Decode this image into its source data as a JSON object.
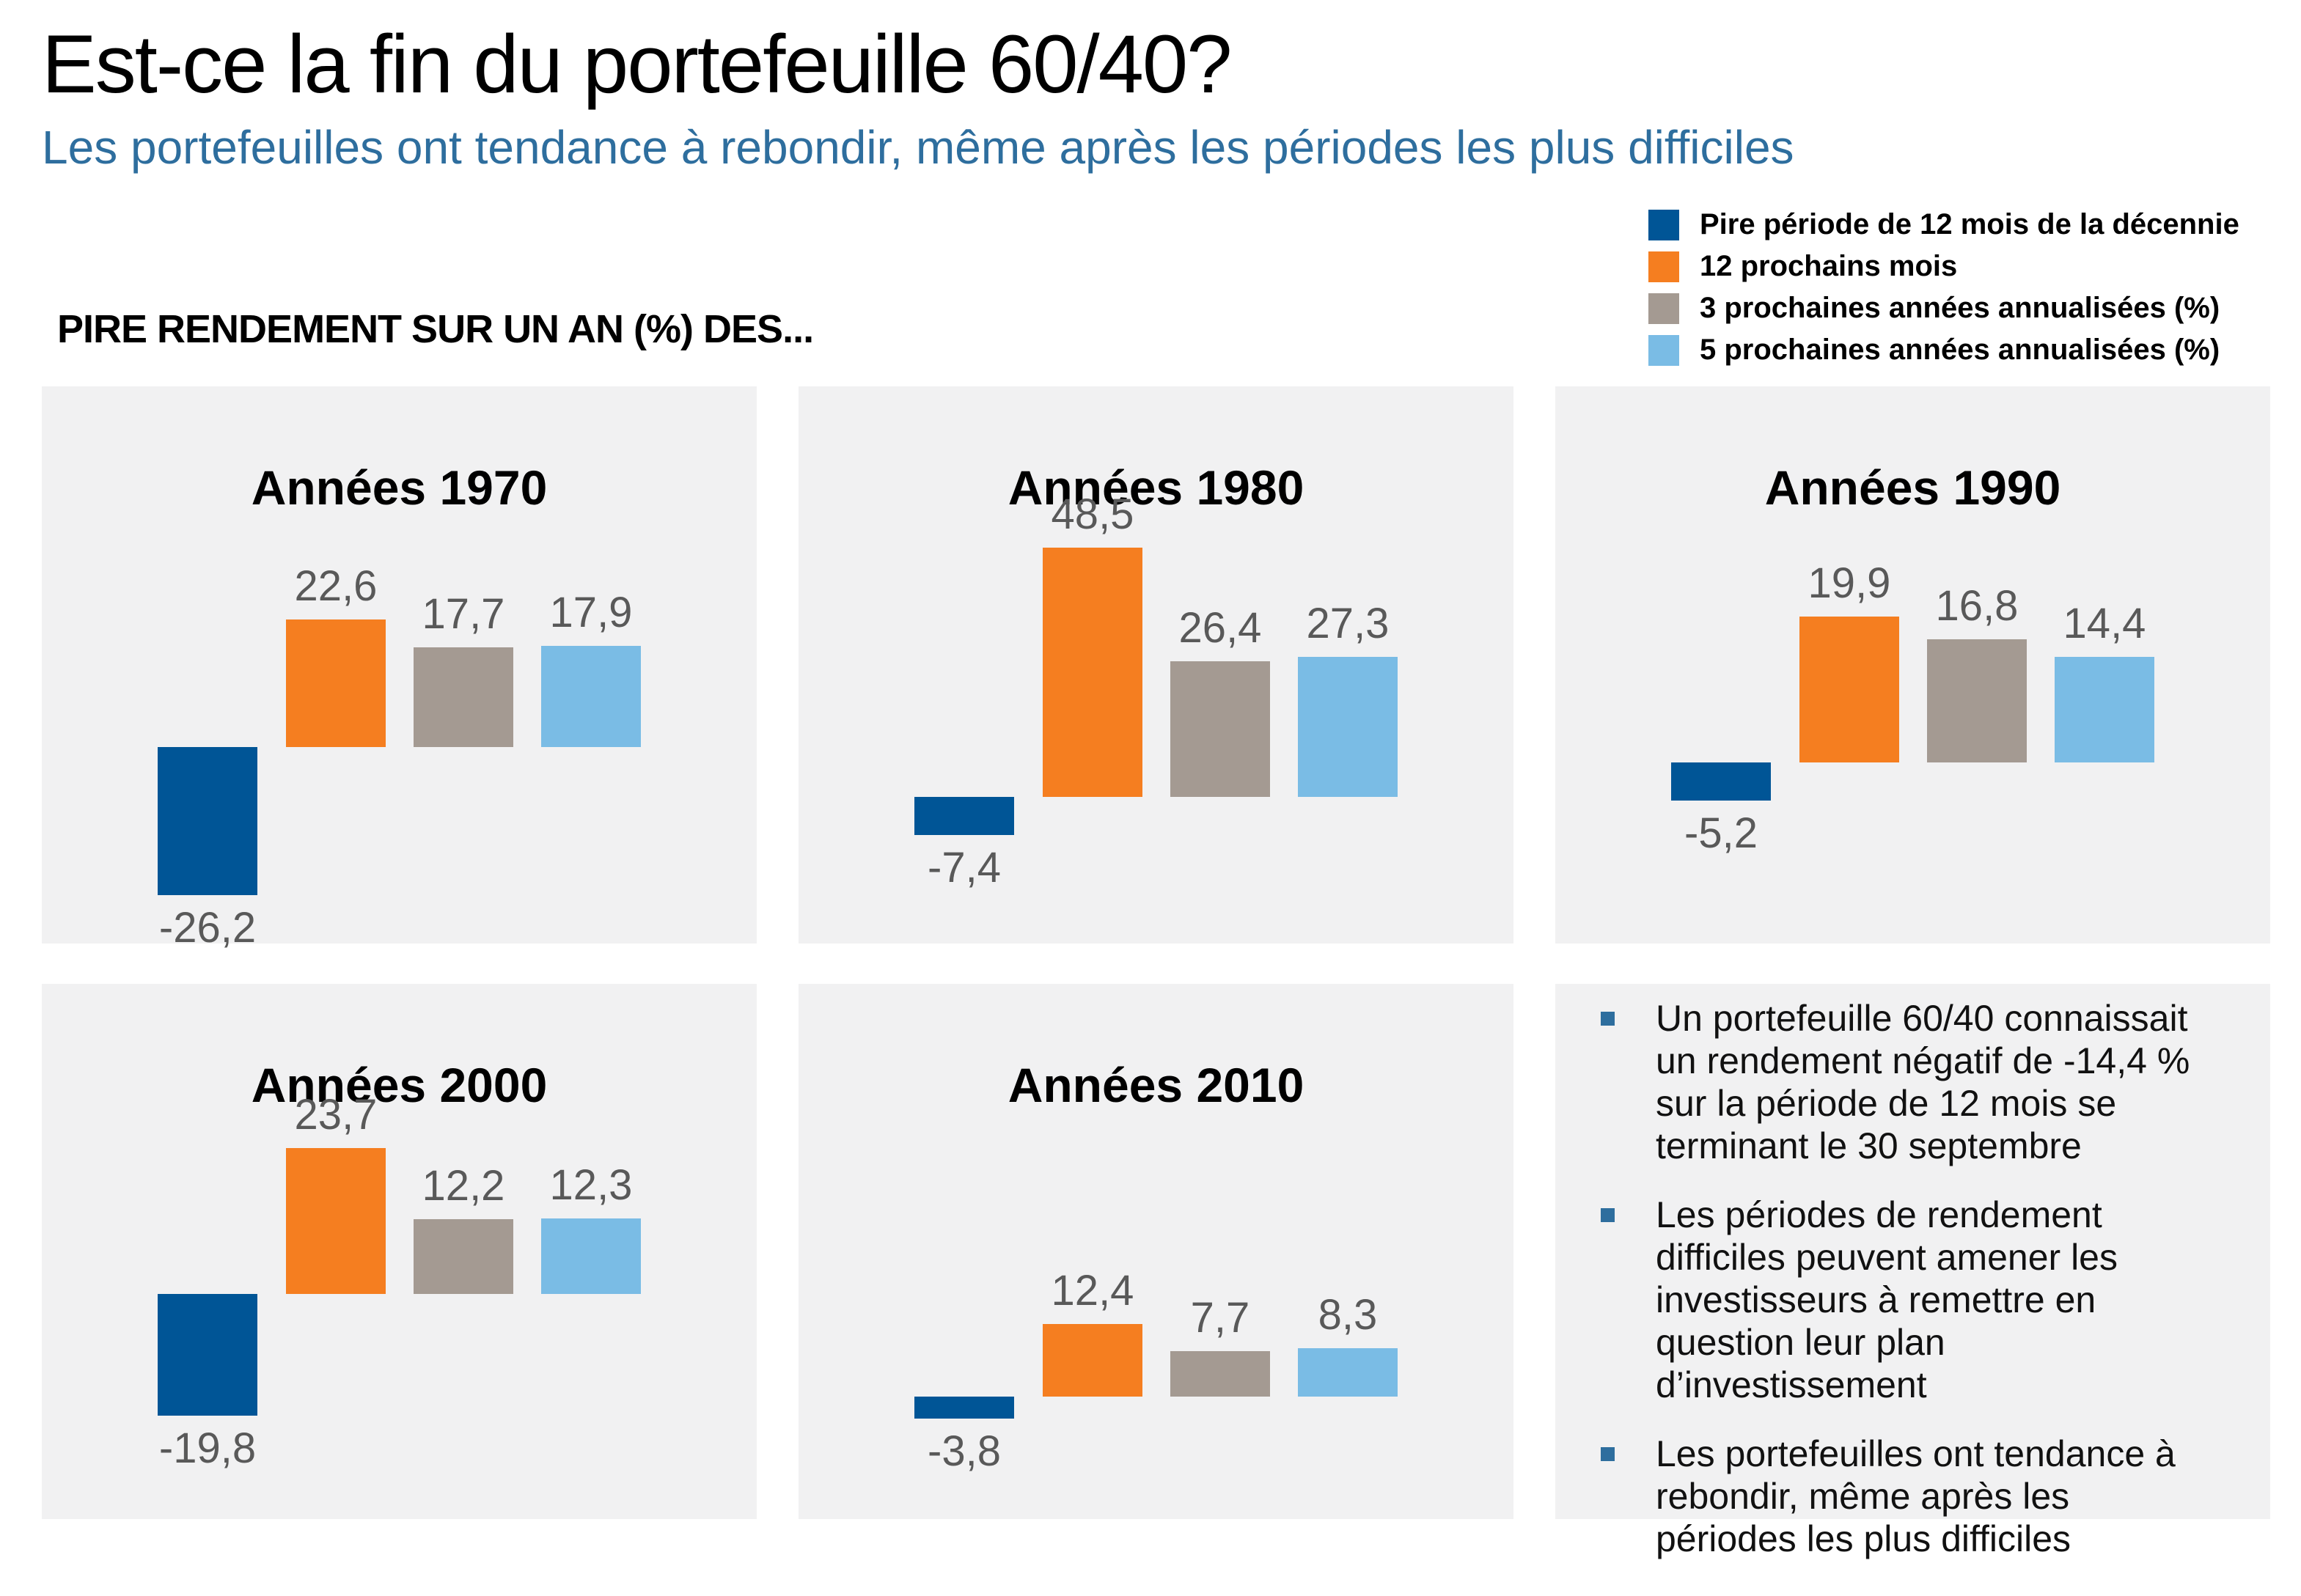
{
  "header": {
    "title": "Est-ce la fin du portefeuille 60/40?",
    "subtitle": "Les portefeuilles ont tendance à rebondir, même après les périodes les plus difficiles"
  },
  "section_label": "PIRE RENDEMENT SUR UN AN (%) DES...",
  "legend": {
    "items": [
      {
        "label": "Pire période de 12 mois de la décennie",
        "color": "#005596"
      },
      {
        "label": "12 prochains mois",
        "color": "#F57E20"
      },
      {
        "label": "3 prochaines années annualisées (%)",
        "color": "#A49A92"
      },
      {
        "label": "5 prochaines années annualisées (%)",
        "color": "#7ABCE5"
      }
    ]
  },
  "chart_data": {
    "type": "bar",
    "unit": "%",
    "series_labels": [
      "Pire période de 12 mois de la décennie",
      "12 prochains mois",
      "3 prochaines années annualisées (%)",
      "5 prochaines années annualisées (%)"
    ],
    "series_colors": [
      "#005596",
      "#F57E20",
      "#A49A92",
      "#7ABCE5"
    ],
    "panels": [
      {
        "title": "Années 1970",
        "values": [
          -26.2,
          22.6,
          17.7,
          17.9
        ],
        "labels": [
          "-26,2",
          "22,6",
          "17,7",
          "17,9"
        ]
      },
      {
        "title": "Années 1980",
        "values": [
          -7.4,
          48.5,
          26.4,
          27.3
        ],
        "labels": [
          "-7,4",
          "48,5",
          "26,4",
          "27,3"
        ]
      },
      {
        "title": "Années 1990",
        "values": [
          -5.2,
          19.9,
          16.8,
          14.4
        ],
        "labels": [
          "-5,2",
          "19,9",
          "16,8",
          "14,4"
        ]
      },
      {
        "title": "Années 2000",
        "values": [
          -19.8,
          23.7,
          12.2,
          12.3
        ],
        "labels": [
          "-19,8",
          "23,7",
          "12,2",
          "12,3"
        ]
      },
      {
        "title": "Années 2010",
        "values": [
          -3.8,
          12.4,
          7.7,
          8.3
        ],
        "labels": [
          "-3,8",
          "12,4",
          "7,7",
          "8,3"
        ]
      }
    ]
  },
  "notes": {
    "bullet_color": "#2E6E9E",
    "items": [
      "Un portefeuille 60/40 connaissait un rendement négatif de -14,4 % sur la période de 12 mois se terminant le 30 septembre",
      "Les périodes de rendement difficiles peuvent amener les investisseurs à remettre en question leur plan d’investissement",
      "Les portefeuilles ont tendance à rebondir, même après les périodes les plus difficiles"
    ]
  },
  "colors": {
    "subtitle": "#2E6E9E",
    "panel_bg": "#F1F1F2",
    "bar_label": "#595959"
  }
}
